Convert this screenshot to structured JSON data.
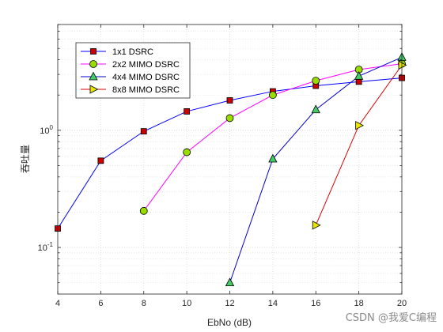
{
  "chart_data": {
    "type": "line",
    "title": "",
    "xlabel": "EbNo (dB)",
    "ylabel": "吞吐量",
    "xlim": [
      4,
      20
    ],
    "ylim": [
      0.04,
      8
    ],
    "yscale": "log",
    "grid": true,
    "legend_position": "top-left",
    "x_ticks": [
      4,
      6,
      8,
      10,
      12,
      14,
      16,
      18,
      20
    ],
    "y_ticks": [
      {
        "value": 0.1,
        "base": "10",
        "exp": "-1"
      },
      {
        "value": 1,
        "base": "10",
        "exp": "0"
      }
    ],
    "series": [
      {
        "name": "1x1 DSRC",
        "color": "#0000ff",
        "marker": "square",
        "marker_color": "#cc0000",
        "x": [
          4,
          6,
          8,
          10,
          12,
          14,
          16,
          18,
          20
        ],
        "y": [
          0.145,
          0.55,
          0.98,
          1.45,
          1.8,
          2.15,
          2.4,
          2.6,
          2.8
        ]
      },
      {
        "name": "2x2 MIMO DSRC",
        "color": "#ff00ff",
        "marker": "circle",
        "marker_color": "#99dd00",
        "x": [
          8,
          10,
          12,
          14,
          16,
          18,
          20
        ],
        "y": [
          0.205,
          0.65,
          1.27,
          2.0,
          2.65,
          3.3,
          3.7
        ]
      },
      {
        "name": "4x4 MIMO DSRC",
        "color": "#0000cc",
        "marker": "triangle-up",
        "marker_color": "#44cc66",
        "x": [
          12,
          14,
          16,
          18,
          20
        ],
        "y": [
          0.05,
          0.57,
          1.5,
          2.9,
          4.2
        ]
      },
      {
        "name": "8x8 MIMO DSRC",
        "color": "#dd0000",
        "marker": "triangle-right",
        "marker_color": "#e6e600",
        "x": [
          16,
          18,
          20
        ],
        "y": [
          0.155,
          1.1,
          3.6
        ]
      }
    ]
  },
  "watermark": "CSDN @我爱C编程"
}
